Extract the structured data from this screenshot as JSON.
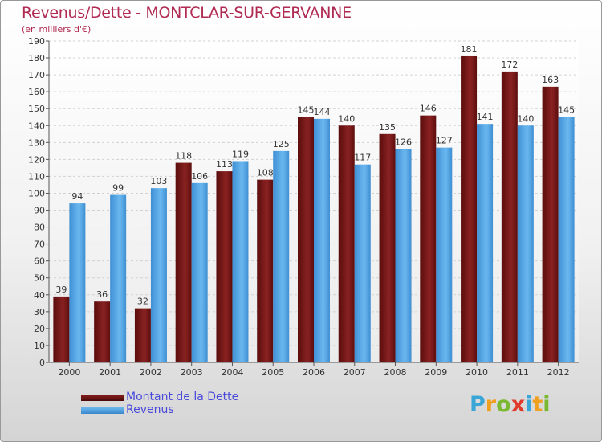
{
  "title": "Revenus/Dette - MONTCLAR-SUR-GERVANNE",
  "subtitle": "(en milliers d'€)",
  "logo": {
    "letters": [
      "P",
      "r",
      "o",
      "x",
      "i",
      "t",
      "i"
    ],
    "colors": [
      "#3aa6d8",
      "#f0a020",
      "#7ab830",
      "#e03a2a",
      "#3aa6d8",
      "#f0a020",
      "#7ab830"
    ]
  },
  "chart_data": {
    "type": "bar",
    "categories": [
      "2000",
      "2001",
      "2002",
      "2003",
      "2004",
      "2005",
      "2006",
      "2007",
      "2008",
      "2009",
      "2010",
      "2011",
      "2012"
    ],
    "series": [
      {
        "name": "Montant de la Dette",
        "color": "#6b1414",
        "values": [
          39,
          36,
          32,
          118,
          113,
          108,
          145,
          140,
          135,
          146,
          181,
          172,
          163
        ]
      },
      {
        "name": "Revenus",
        "color": "#4a9ee0",
        "values": [
          94,
          99,
          103,
          106,
          119,
          125,
          144,
          117,
          126,
          127,
          141,
          140,
          145
        ]
      }
    ],
    "ylim": [
      0,
      190
    ],
    "yticks": [
      0,
      10,
      20,
      30,
      40,
      50,
      60,
      70,
      80,
      90,
      100,
      110,
      120,
      130,
      140,
      150,
      160,
      170,
      180,
      190
    ],
    "grid": true,
    "legend_position": "bottom-left"
  }
}
